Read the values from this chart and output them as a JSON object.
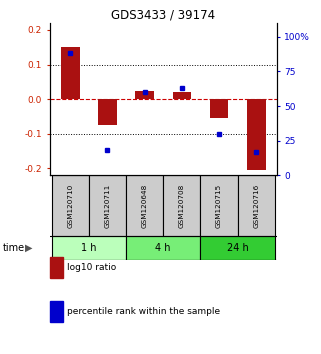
{
  "title": "GDS3433 / 39174",
  "samples": [
    "GSM120710",
    "GSM120711",
    "GSM120648",
    "GSM120708",
    "GSM120715",
    "GSM120716"
  ],
  "log10_ratio": [
    0.15,
    -0.075,
    0.025,
    0.02,
    -0.055,
    -0.205
  ],
  "percentile_rank": [
    88,
    18,
    60,
    63,
    30,
    17
  ],
  "groups": [
    {
      "label": "1 h",
      "indices": [
        0,
        1
      ],
      "color": "#bbffbb"
    },
    {
      "label": "4 h",
      "indices": [
        2,
        3
      ],
      "color": "#77ee77"
    },
    {
      "label": "24 h",
      "indices": [
        4,
        5
      ],
      "color": "#33cc33"
    }
  ],
  "ylim_left": [
    -0.22,
    0.22
  ],
  "ylim_right": [
    0,
    110
  ],
  "yticks_left": [
    -0.2,
    -0.1,
    0.0,
    0.1,
    0.2
  ],
  "yticks_right": [
    0,
    25,
    50,
    75,
    100
  ],
  "bar_color": "#aa1111",
  "dot_color": "#0000cc",
  "zero_line_color": "#cc0000",
  "sample_box_color": "#cccccc",
  "time_label": "time"
}
